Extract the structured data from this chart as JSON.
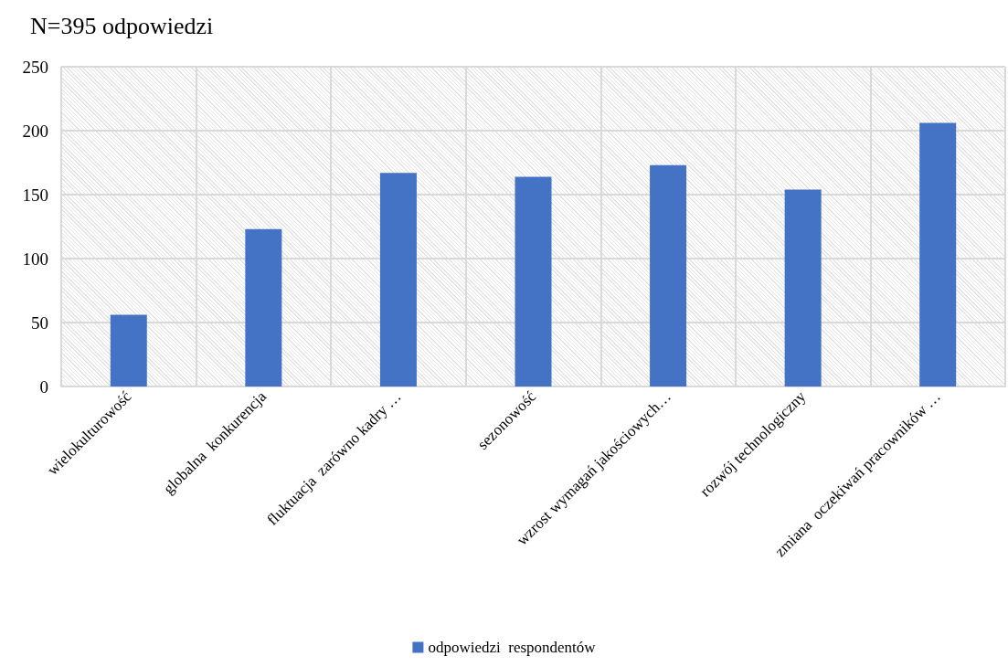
{
  "chart_data": {
    "type": "bar",
    "title": "N=395 odpowiedzi",
    "categories": [
      "wielokulturowość",
      "globalna  konkurencja",
      "fluktuacja  zarówno kadry …",
      "sezonowość",
      "wzrost wymagań jakościowych…",
      "rozwój technologiczny",
      "zmiana  oczekiwań pracowników …"
    ],
    "series": [
      {
        "name": "odpowiedzi  respondentów",
        "color": "#4472c4",
        "values": [
          56,
          123,
          167,
          164,
          173,
          154,
          206
        ]
      }
    ],
    "ylim": [
      0,
      250
    ],
    "yticks": [
      0,
      50,
      100,
      150,
      200,
      250
    ],
    "grid": true,
    "legend": "bottom"
  }
}
